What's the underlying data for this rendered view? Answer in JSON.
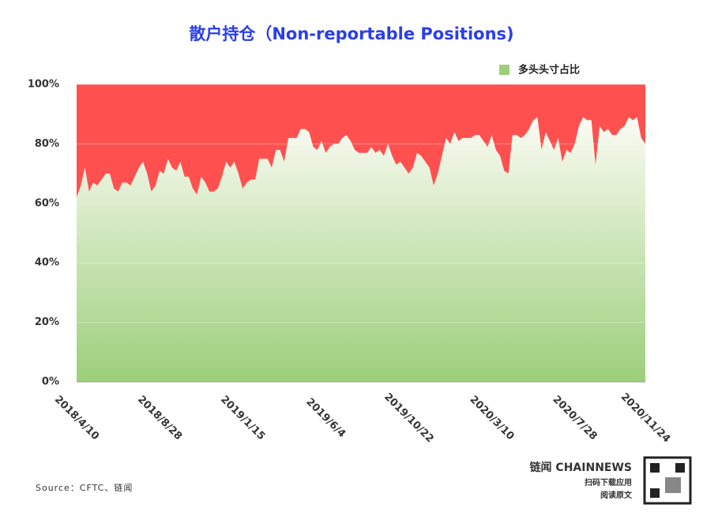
{
  "chart_data": {
    "type": "area",
    "title": "散户持仓（Non-reportable Positions)",
    "categories": [
      "2018/4/10",
      null,
      null,
      null,
      null,
      null,
      null,
      null,
      null,
      null,
      null,
      null,
      null,
      null,
      null,
      null,
      null,
      null,
      null,
      null,
      "2018/8/28",
      null,
      null,
      null,
      null,
      null,
      null,
      null,
      null,
      null,
      null,
      null,
      null,
      null,
      null,
      null,
      null,
      null,
      null,
      null,
      "2019/1/15",
      null,
      null,
      null,
      null,
      null,
      null,
      null,
      null,
      null,
      null,
      null,
      null,
      null,
      null,
      null,
      null,
      null,
      null,
      null,
      "2019/6/4",
      null,
      null,
      null,
      null,
      null,
      null,
      null,
      null,
      null,
      null,
      null,
      null,
      null,
      null,
      null,
      null,
      null,
      null,
      null,
      "2019/10/22",
      null,
      null,
      null,
      null,
      null,
      null,
      null,
      null,
      null,
      null,
      null,
      null,
      null,
      null,
      null,
      null,
      null,
      null,
      null,
      "2020/3/10",
      null,
      null,
      null,
      null,
      null,
      null,
      null,
      null,
      null,
      null,
      null,
      null,
      null,
      null,
      null,
      null,
      null,
      null,
      null,
      "2020/7/28",
      null,
      null,
      null,
      null,
      null,
      null,
      null,
      null,
      null,
      null,
      null,
      null,
      null,
      null,
      null,
      null,
      "2020/11/24"
    ],
    "series": [
      {
        "name": "多头头寸占比",
        "color": "#9ccf7a",
        "values": [
          62,
          66,
          72,
          64,
          67,
          66,
          68,
          70,
          70,
          65,
          64,
          67,
          67,
          66,
          69,
          72,
          74,
          70,
          64,
          66,
          71,
          70,
          75,
          72,
          71,
          74,
          69,
          69,
          65,
          63,
          69,
          67,
          64,
          64,
          65,
          69,
          74,
          72,
          74,
          70,
          65,
          67,
          68,
          68,
          75,
          75,
          75,
          72,
          78,
          78,
          74,
          82,
          82,
          82,
          85,
          85,
          84,
          79,
          78,
          81,
          77,
          79,
          80,
          80,
          82,
          83,
          81,
          78,
          77,
          77,
          77,
          79,
          77,
          78,
          76,
          80,
          76,
          73,
          74,
          72,
          70,
          72,
          77,
          76,
          74,
          72,
          66,
          70,
          76,
          82,
          80,
          84,
          81,
          82,
          82,
          82,
          83,
          83,
          81,
          79,
          83,
          78,
          76,
          71,
          70,
          83,
          83,
          82,
          83,
          85,
          88,
          89,
          78,
          84,
          81,
          78,
          82,
          74,
          78,
          77,
          80,
          86,
          89,
          88,
          88,
          73,
          86,
          84,
          85,
          83,
          83,
          85,
          86,
          89,
          88,
          89,
          82,
          80
        ]
      }
    ],
    "remainder_color": "#ff5050",
    "ylim": [
      0,
      100
    ],
    "yticks": [
      {
        "value": 0,
        "label": "0%"
      },
      {
        "value": 20,
        "label": "20%"
      },
      {
        "value": 40,
        "label": "40%"
      },
      {
        "value": 60,
        "label": "60%"
      },
      {
        "value": 80,
        "label": "80%"
      },
      {
        "value": 100,
        "label": "100%"
      }
    ],
    "grid": true,
    "legend": "top-right",
    "source": "Source：CFTC、链闻"
  },
  "branding": {
    "logo": "链闻 CHAINNEWS",
    "line1": "扫码下载应用",
    "line2": "阅读原文"
  }
}
